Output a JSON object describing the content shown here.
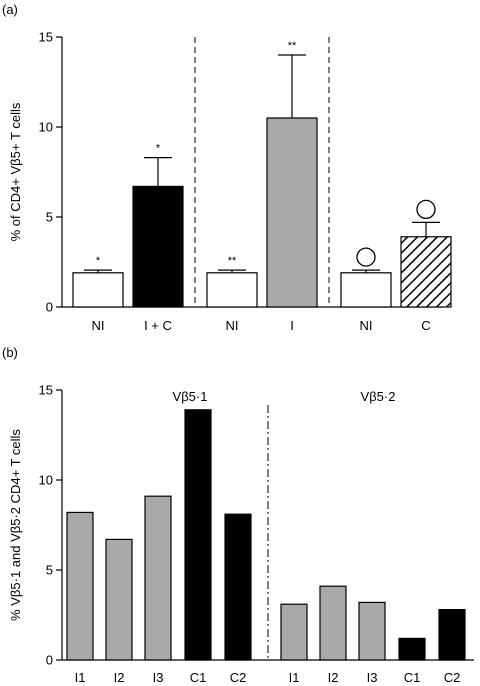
{
  "chart_data": [
    {
      "panel": "(a)",
      "type": "bar",
      "ylabel": "% of CD4+ Vβ5+ T cells",
      "ylim": [
        0,
        15
      ],
      "yticks": [
        0,
        5,
        10,
        15
      ],
      "colors": {
        "white": "#ffffff",
        "black": "#000000",
        "grey": "#a9a9a9",
        "hatched": "hatch"
      },
      "bars": [
        {
          "label": "NI",
          "value": 1.9,
          "error": 0.15,
          "fill": "white",
          "sig": "*"
        },
        {
          "label": "I + C",
          "value": 6.7,
          "error": 1.6,
          "fill": "black",
          "sig": "*"
        },
        {
          "label": "NI",
          "value": 1.9,
          "error": 0.15,
          "fill": "white",
          "sig": "**"
        },
        {
          "label": "I",
          "value": 10.5,
          "error": 3.5,
          "fill": "grey",
          "sig": "**"
        },
        {
          "label": "NI",
          "value": 1.9,
          "error": 0.15,
          "fill": "white",
          "sig": "circle"
        },
        {
          "label": "C",
          "value": 3.9,
          "error": 0.8,
          "fill": "hatched",
          "sig": "circle"
        }
      ],
      "separators_after": [
        1,
        3
      ]
    },
    {
      "panel": "(b)",
      "type": "bar",
      "ylabel": "% Vβ5·1 and Vβ5·2 CD4+ T cells",
      "ylim": [
        0,
        15
      ],
      "yticks": [
        0,
        5,
        10,
        15
      ],
      "groups": [
        "Vβ5·1",
        "Vβ5·2"
      ],
      "colors": {
        "grey": "#a9a9a9",
        "black": "#000000"
      },
      "bars": [
        {
          "label": "I1",
          "value": 8.2,
          "fill": "grey"
        },
        {
          "label": "I2",
          "value": 6.7,
          "fill": "grey"
        },
        {
          "label": "I3",
          "value": 9.1,
          "fill": "grey"
        },
        {
          "label": "C1",
          "value": 13.9,
          "fill": "black"
        },
        {
          "label": "C2",
          "value": 8.1,
          "fill": "black"
        },
        {
          "label": "I1",
          "value": 3.1,
          "fill": "grey"
        },
        {
          "label": "I2",
          "value": 4.1,
          "fill": "grey"
        },
        {
          "label": "I3",
          "value": 3.2,
          "fill": "grey"
        },
        {
          "label": "C1",
          "value": 1.2,
          "fill": "black"
        },
        {
          "label": "C2",
          "value": 2.8,
          "fill": "black"
        }
      ],
      "separator_after": 4
    }
  ]
}
